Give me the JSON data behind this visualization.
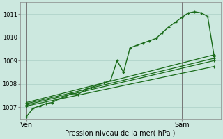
{
  "background_color": "#cce8df",
  "grid_color": "#aacfc6",
  "line_color": "#1a6b1a",
  "xlabel": "Pression niveau de la mer( hPa )",
  "ylim": [
    1006.5,
    1011.5
  ],
  "yticks": [
    1007,
    1008,
    1009,
    1010,
    1011
  ],
  "x_ven": 0,
  "x_sam": 24,
  "xlim": [
    -1,
    30
  ],
  "figsize": [
    3.2,
    2.0
  ],
  "dpi": 100,
  "straight_lines": [
    [
      [
        0,
        1007.05
      ],
      [
        29,
        1008.75
      ]
    ],
    [
      [
        0,
        1007.1
      ],
      [
        29,
        1009.0
      ]
    ],
    [
      [
        0,
        1007.15
      ],
      [
        29,
        1009.1
      ]
    ],
    [
      [
        0,
        1007.2
      ],
      [
        29,
        1009.25
      ]
    ]
  ],
  "zigzag": [
    [
      0,
      1006.6
    ],
    [
      1,
      1006.95
    ],
    [
      2,
      1007.05
    ],
    [
      3,
      1007.15
    ],
    [
      4,
      1007.2
    ],
    [
      5,
      1007.35
    ],
    [
      6,
      1007.45
    ],
    [
      7,
      1007.6
    ],
    [
      8,
      1007.55
    ],
    [
      9,
      1007.75
    ],
    [
      10,
      1007.85
    ],
    [
      11,
      1007.95
    ],
    [
      12,
      1008.05
    ],
    [
      13,
      1008.15
    ],
    [
      14,
      1009.0
    ],
    [
      15,
      1008.5
    ],
    [
      16,
      1009.55
    ],
    [
      17,
      1009.65
    ],
    [
      18,
      1009.75
    ],
    [
      19,
      1009.85
    ],
    [
      20,
      1009.95
    ],
    [
      21,
      1010.2
    ],
    [
      22,
      1010.45
    ],
    [
      23,
      1010.65
    ],
    [
      24,
      1010.85
    ],
    [
      25,
      1011.05
    ],
    [
      26,
      1011.1
    ],
    [
      27,
      1011.05
    ],
    [
      28,
      1010.9
    ],
    [
      29,
      1009.2
    ]
  ]
}
